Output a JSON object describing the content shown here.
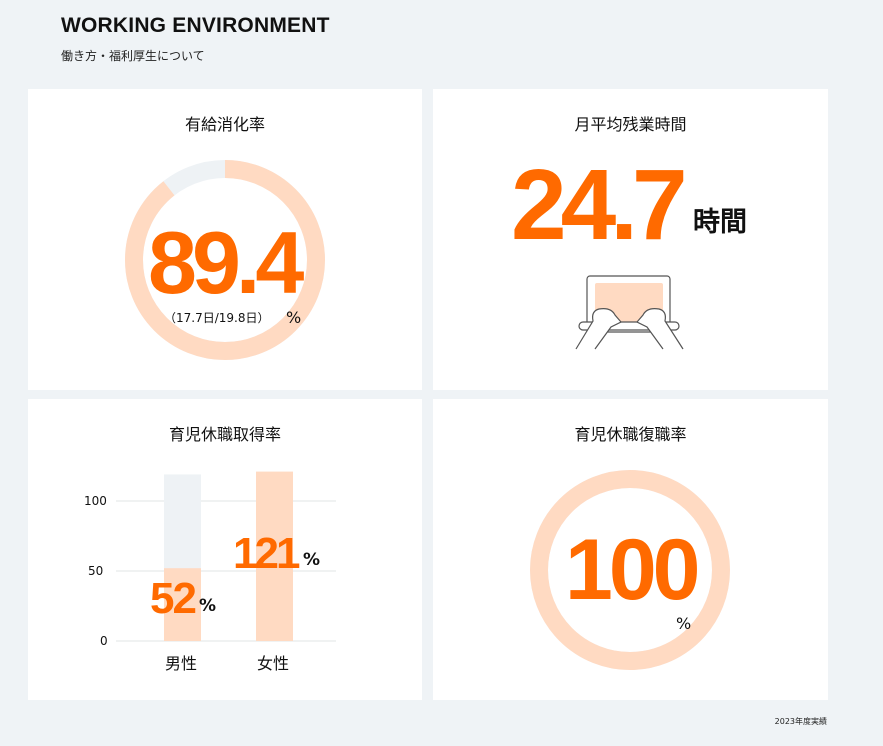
{
  "header": {
    "title": "WORKING ENVIRONMENT",
    "subtitle": "働き方・福利厚生について"
  },
  "colors": {
    "accent": "#ff6a00",
    "accent_light": "#ffdac2",
    "track": "#eef2f5"
  },
  "paid_leave": {
    "title": "有給消化率",
    "value": "89.4",
    "percent": 89.4,
    "unit": "%",
    "detail": "（17.7日/19.8日）"
  },
  "overtime": {
    "title": "月平均残業時間",
    "value": "24.7",
    "unit": "時間",
    "icon": "laptop-typing-icon"
  },
  "childcare_leave": {
    "title": "育児休職取得率"
  },
  "return_rate": {
    "title": "育児休職復職率",
    "value": "100",
    "percent": 100,
    "unit": "%"
  },
  "chart_data": {
    "type": "bar",
    "categories": [
      "男性",
      "女性"
    ],
    "values": [
      52,
      121
    ],
    "value_labels": [
      "52",
      "121"
    ],
    "unit": "%",
    "yticks": [
      "0",
      "50",
      "100"
    ],
    "ylim": [
      0,
      125
    ],
    "grid": true
  },
  "footer": {
    "note": "2023年度実績"
  }
}
